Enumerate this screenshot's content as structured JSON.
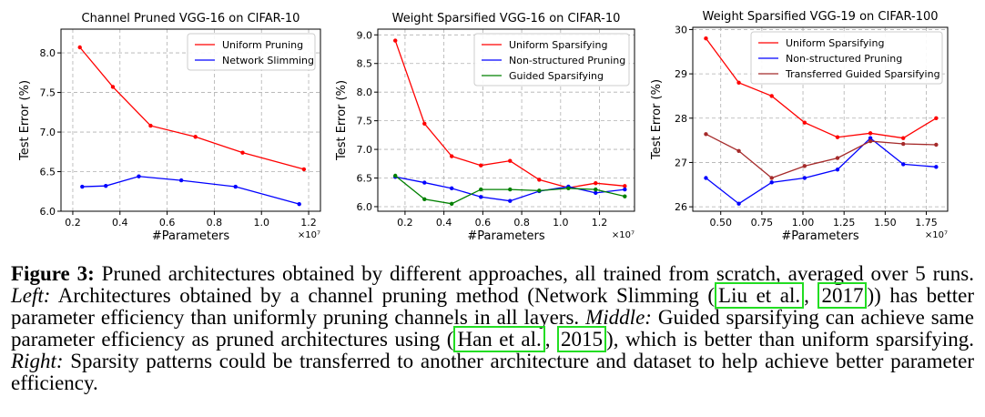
{
  "chart_data": [
    {
      "type": "line",
      "title": "Channel Pruned VGG-16 on CIFAR-10",
      "xlabel": "#Parameters",
      "ylabel": "Test Error (%)",
      "x_multiplier": "×10⁷",
      "xlim": [
        0.15,
        1.25
      ],
      "ylim": [
        6.0,
        8.3
      ],
      "xticks": [
        0.2,
        0.4,
        0.6,
        0.8,
        1.0,
        1.2
      ],
      "xtick_labels": [
        "0.2",
        "0.4",
        "0.6",
        "0.8",
        "1.0",
        "1.2"
      ],
      "yticks": [
        6.0,
        6.5,
        7.0,
        7.5,
        8.0
      ],
      "ytick_labels": [
        "6.0",
        "6.5",
        "7.0",
        "7.5",
        "8.0"
      ],
      "grid": true,
      "legend_position": "top-right",
      "series": [
        {
          "name": "Uniform Pruning",
          "color": "#ff0000",
          "x": [
            0.23,
            0.37,
            0.53,
            0.72,
            0.92,
            1.18
          ],
          "y": [
            8.07,
            7.57,
            7.08,
            6.94,
            6.74,
            6.53
          ]
        },
        {
          "name": "Network Slimming",
          "color": "#0000ff",
          "x": [
            0.24,
            0.34,
            0.48,
            0.66,
            0.89,
            1.16
          ],
          "y": [
            6.31,
            6.32,
            6.44,
            6.39,
            6.31,
            6.09
          ]
        }
      ]
    },
    {
      "type": "line",
      "title": "Weight Sparsified VGG-16 on CIFAR-10",
      "xlabel": "#Parameters",
      "ylabel": "Test Error (%)",
      "x_multiplier": "×10⁷",
      "xlim": [
        0.06,
        1.38
      ],
      "ylim": [
        5.92,
        9.1
      ],
      "xticks": [
        0.2,
        0.4,
        0.6,
        0.8,
        1.0,
        1.2
      ],
      "xtick_labels": [
        "0.2",
        "0.4",
        "0.6",
        "0.8",
        "1.0",
        "1.2"
      ],
      "yticks": [
        6.0,
        6.5,
        7.0,
        7.5,
        8.0,
        8.5,
        9.0
      ],
      "ytick_labels": [
        "6.0",
        "6.5",
        "7.0",
        "7.5",
        "8.0",
        "8.5",
        "9.0"
      ],
      "grid": true,
      "legend_position": "top-right",
      "series": [
        {
          "name": "Uniform Sparsifying",
          "color": "#ff0000",
          "x": [
            0.15,
            0.3,
            0.44,
            0.59,
            0.74,
            0.89,
            1.04,
            1.18,
            1.33
          ],
          "y": [
            8.9,
            7.45,
            6.88,
            6.72,
            6.8,
            6.47,
            6.33,
            6.41,
            6.36
          ]
        },
        {
          "name": "Non-structured Pruning",
          "color": "#0000ff",
          "x": [
            0.15,
            0.3,
            0.44,
            0.59,
            0.74,
            0.89,
            1.04,
            1.18,
            1.33
          ],
          "y": [
            6.52,
            6.42,
            6.32,
            6.17,
            6.1,
            6.27,
            6.35,
            6.24,
            6.3
          ]
        },
        {
          "name": "Guided Sparsifying",
          "color": "#008000",
          "x": [
            0.15,
            0.3,
            0.44,
            0.59,
            0.74,
            0.89,
            1.04,
            1.18,
            1.33
          ],
          "y": [
            6.54,
            6.13,
            6.05,
            6.3,
            6.3,
            6.28,
            6.32,
            6.3,
            6.18
          ]
        }
      ]
    },
    {
      "type": "line",
      "title": "Weight Sparsified VGG-19 on CIFAR-100",
      "xlabel": "#Parameters",
      "ylabel": "Test Error (%)",
      "x_multiplier": "×10⁷",
      "xlim": [
        0.33,
        1.88
      ],
      "ylim": [
        25.9,
        30.05
      ],
      "xticks": [
        0.5,
        0.75,
        1.0,
        1.25,
        1.5,
        1.75
      ],
      "xtick_labels": [
        "0.50",
        "0.75",
        "1.00",
        "1.25",
        "1.50",
        "1.75"
      ],
      "yticks": [
        26,
        27,
        28,
        29,
        30
      ],
      "ytick_labels": [
        "26",
        "27",
        "28",
        "29",
        "30"
      ],
      "grid": true,
      "legend_position": "top-right",
      "series": [
        {
          "name": "Uniform Sparsifying",
          "color": "#ff0000",
          "x": [
            0.41,
            0.61,
            0.81,
            1.01,
            1.21,
            1.41,
            1.61,
            1.81
          ],
          "y": [
            29.8,
            28.8,
            28.5,
            27.9,
            27.57,
            27.66,
            27.55,
            28.0
          ]
        },
        {
          "name": "Non-structured Pruning",
          "color": "#0000ff",
          "x": [
            0.41,
            0.61,
            0.81,
            1.01,
            1.21,
            1.41,
            1.61,
            1.81
          ],
          "y": [
            26.65,
            26.07,
            26.55,
            26.65,
            26.84,
            27.55,
            26.96,
            26.9
          ]
        },
        {
          "name": "Transferred Guided Sparsifying",
          "color": "#a52a2a",
          "x": [
            0.41,
            0.61,
            0.81,
            1.01,
            1.21,
            1.41,
            1.61,
            1.81
          ],
          "y": [
            27.64,
            27.26,
            26.65,
            26.92,
            27.1,
            27.48,
            27.42,
            27.4
          ]
        }
      ]
    }
  ],
  "caption": {
    "label": "Figure 3:",
    "t1": " Pruned architectures obtained by different approaches, all trained from scratch, averaged over 5 runs. ",
    "left_label": "Left:",
    "t2": " Architectures obtained by a channel pruning method (Network Slimming (",
    "cite1_author": "Liu et al.",
    "sep1": ", ",
    "cite1_year": "2017",
    "t3": ")) has better parameter efficiency than uniformly pruning channels in all layers. ",
    "middle_label": "Middle:",
    "t4": " Guided sparsifying can achieve same parameter efficiency as pruned architectures using (",
    "cite2_author": "Han et al.",
    "sep2": ", ",
    "cite2_year": "2015",
    "t5": "), which is better than uniform sparsifying. ",
    "right_label": "Right:",
    "t6": " Sparsity patterns could be transferred to another architecture and dataset to help achieve better parameter efficiency."
  }
}
